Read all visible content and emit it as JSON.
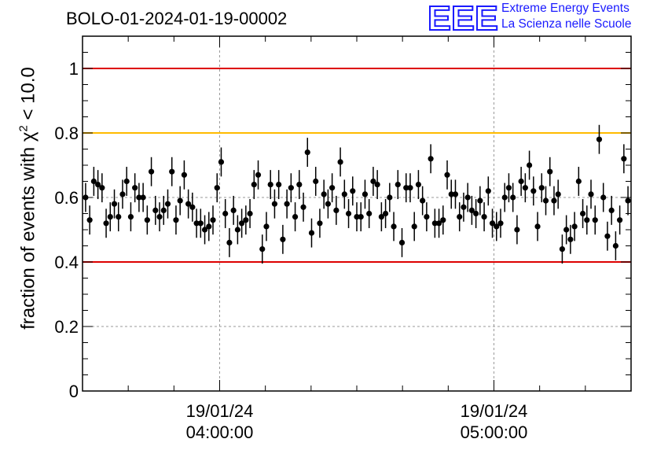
{
  "run_title": "BOLO-01-2024-01-19-00002",
  "logo": {
    "mark": "EEE",
    "line1": "Extreme Energy Events",
    "line2": "La Scienza nelle Scuole",
    "color": "#1a1aff"
  },
  "chart_data": {
    "type": "scatter",
    "title": "BOLO-01-2024-01-19-00002",
    "ylabel_prefix": "fraction of events with χ",
    "ylabel_sup": "2",
    "ylabel_suffix": " < 10.0",
    "xlabel": "",
    "ylim": [
      0,
      1.1
    ],
    "xlim": [
      "2024-01-19 03:30:00",
      "2024-01-19 05:30:00"
    ],
    "x_tick_labels": [
      {
        "x": "2024-01-19 04:00:00",
        "date": "19/01/24",
        "time": "04:00:00"
      },
      {
        "x": "2024-01-19 05:00:00",
        "date": "19/01/24",
        "time": "05:00:00"
      }
    ],
    "y_ticks": [
      0,
      0.2,
      0.4,
      0.6,
      0.8,
      1
    ],
    "y_tick_labels": [
      "0",
      "0.2",
      "0.4",
      "0.6",
      "0.8",
      "1"
    ],
    "grid": true,
    "reference_lines": [
      {
        "y": 1.0,
        "color": "#dd0000"
      },
      {
        "y": 0.8,
        "color": "#ffbb00"
      },
      {
        "y": 0.4,
        "color": "#dd0000"
      }
    ],
    "marker_color": "#000000",
    "error_bar_half_width": 0.045,
    "y_values": [
      0.6,
      0.53,
      0.65,
      0.64,
      0.63,
      0.52,
      0.54,
      0.58,
      0.54,
      0.61,
      0.65,
      0.54,
      0.63,
      0.6,
      0.6,
      0.53,
      0.68,
      0.56,
      0.54,
      0.56,
      0.58,
      0.68,
      0.53,
      0.59,
      0.67,
      0.58,
      0.57,
      0.52,
      0.52,
      0.5,
      0.51,
      0.53,
      0.63,
      0.71,
      0.55,
      0.46,
      0.56,
      0.5,
      0.52,
      0.53,
      0.55,
      0.64,
      0.67,
      0.44,
      0.51,
      0.64,
      0.58,
      0.64,
      0.47,
      0.58,
      0.63,
      0.54,
      0.64,
      0.57,
      0.74,
      0.49,
      0.65,
      0.52,
      0.61,
      0.58,
      0.63,
      0.56,
      0.71,
      0.61,
      0.55,
      0.62,
      0.54,
      0.54,
      0.61,
      0.55,
      0.65,
      0.64,
      0.54,
      0.55,
      0.6,
      0.51,
      0.64,
      0.46,
      0.63,
      0.63,
      0.51,
      0.64,
      0.59,
      0.54,
      0.72,
      0.52,
      0.52,
      0.53,
      0.67,
      0.61,
      0.61,
      0.54,
      0.57,
      0.6,
      0.56,
      0.55,
      0.59,
      0.54,
      0.62,
      0.52,
      0.51,
      0.52,
      0.6,
      0.63,
      0.6,
      0.5,
      0.65,
      0.63,
      0.7,
      0.62,
      0.51,
      0.63,
      0.59,
      0.68,
      0.59,
      0.61,
      0.44,
      0.5,
      0.47,
      0.51,
      0.65,
      0.55,
      0.53,
      0.61,
      0.53,
      0.78,
      0.6,
      0.48,
      0.56,
      0.45,
      0.53,
      0.72,
      0.59
    ]
  }
}
